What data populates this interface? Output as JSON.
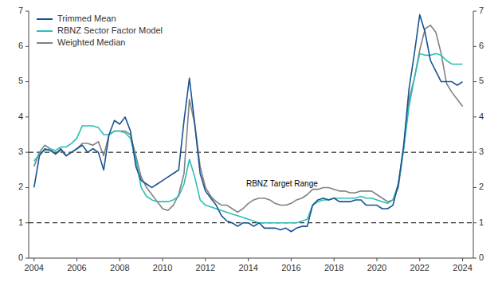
{
  "chart_data": {
    "type": "line",
    "x": [
      2004.0,
      2004.25,
      2004.5,
      2004.75,
      2005.0,
      2005.25,
      2005.5,
      2005.75,
      2006.0,
      2006.25,
      2006.5,
      2006.75,
      2007.0,
      2007.25,
      2007.5,
      2007.75,
      2008.0,
      2008.25,
      2008.5,
      2008.75,
      2009.0,
      2009.25,
      2009.5,
      2009.75,
      2010.0,
      2010.25,
      2010.5,
      2010.75,
      2011.0,
      2011.25,
      2011.5,
      2011.75,
      2012.0,
      2012.25,
      2012.5,
      2012.75,
      2013.0,
      2013.25,
      2013.5,
      2013.75,
      2014.0,
      2014.25,
      2014.5,
      2014.75,
      2015.0,
      2015.25,
      2015.5,
      2015.75,
      2016.0,
      2016.25,
      2016.5,
      2016.75,
      2017.0,
      2017.25,
      2017.5,
      2017.75,
      2018.0,
      2018.25,
      2018.5,
      2018.75,
      2019.0,
      2019.25,
      2019.5,
      2019.75,
      2020.0,
      2020.25,
      2020.5,
      2020.75,
      2021.0,
      2021.25,
      2021.5,
      2021.75,
      2022.0,
      2022.25,
      2022.5,
      2022.75,
      2023.0,
      2023.25,
      2023.5,
      2023.75,
      2024.0
    ],
    "series": [
      {
        "name": "Trimmed Mean",
        "color": "#1a5294",
        "values": [
          2.0,
          2.9,
          3.1,
          3.05,
          2.95,
          3.1,
          2.9,
          3.0,
          3.1,
          3.2,
          3.0,
          3.1,
          3.0,
          2.5,
          3.5,
          3.9,
          3.8,
          4.0,
          3.6,
          2.6,
          2.2,
          2.1,
          2.0,
          2.1,
          2.2,
          2.3,
          2.4,
          2.5,
          3.9,
          5.1,
          3.8,
          2.4,
          1.9,
          1.7,
          1.5,
          1.2,
          1.05,
          1.0,
          0.9,
          1.0,
          1.0,
          0.9,
          1.0,
          0.85,
          0.85,
          0.85,
          0.8,
          0.85,
          0.75,
          0.85,
          0.9,
          0.9,
          1.5,
          1.65,
          1.7,
          1.65,
          1.7,
          1.6,
          1.6,
          1.6,
          1.65,
          1.65,
          1.5,
          1.5,
          1.5,
          1.4,
          1.4,
          1.5,
          2.1,
          3.2,
          4.8,
          5.8,
          6.9,
          6.4,
          5.6,
          5.3,
          5.0,
          5.0,
          5.0,
          4.9,
          5.0
        ]
      },
      {
        "name": "RBNZ Sector Factor Model",
        "color": "#2bbfb3",
        "values": [
          2.75,
          2.95,
          3.05,
          3.1,
          3.05,
          3.15,
          3.15,
          3.25,
          3.4,
          3.75,
          3.75,
          3.75,
          3.7,
          3.5,
          3.5,
          3.6,
          3.6,
          3.55,
          3.4,
          2.8,
          2.0,
          1.75,
          1.65,
          1.6,
          1.6,
          1.6,
          1.65,
          1.75,
          2.1,
          2.8,
          2.3,
          1.65,
          1.5,
          1.45,
          1.4,
          1.35,
          1.3,
          1.25,
          1.2,
          1.15,
          1.1,
          1.05,
          1.0,
          1.0,
          1.0,
          1.0,
          1.0,
          1.0,
          1.0,
          1.0,
          1.05,
          1.1,
          1.5,
          1.6,
          1.65,
          1.65,
          1.7,
          1.7,
          1.7,
          1.7,
          1.7,
          1.75,
          1.7,
          1.7,
          1.65,
          1.6,
          1.55,
          1.65,
          2.1,
          3.1,
          4.3,
          5.1,
          5.8,
          5.75,
          5.75,
          5.8,
          5.75,
          5.6,
          5.5,
          5.5,
          5.5
        ]
      },
      {
        "name": "Weighted Median",
        "color": "#808080",
        "values": [
          2.6,
          3.0,
          3.2,
          3.1,
          2.95,
          3.05,
          2.9,
          3.0,
          3.1,
          3.25,
          3.25,
          3.2,
          3.3,
          2.9,
          3.5,
          3.6,
          3.6,
          3.6,
          3.5,
          2.9,
          2.3,
          2.0,
          1.8,
          1.6,
          1.4,
          1.35,
          1.5,
          1.8,
          2.4,
          4.5,
          3.8,
          2.6,
          2.0,
          1.75,
          1.6,
          1.5,
          1.5,
          1.4,
          1.3,
          1.4,
          1.55,
          1.65,
          1.7,
          1.7,
          1.65,
          1.55,
          1.5,
          1.5,
          1.55,
          1.65,
          1.7,
          1.8,
          1.95,
          1.95,
          2.0,
          2.0,
          1.95,
          1.9,
          1.9,
          1.85,
          1.85,
          1.9,
          1.9,
          1.9,
          1.8,
          1.7,
          1.6,
          1.65,
          2.0,
          3.1,
          4.5,
          5.1,
          5.9,
          6.5,
          6.6,
          6.4,
          5.8,
          4.95,
          4.7,
          4.5,
          4.3
        ]
      }
    ],
    "reference_lines": [
      1.0,
      3.0
    ],
    "annotations": [
      {
        "text": "RBNZ Target Range",
        "x": 2013.9,
        "y": 2.1
      }
    ],
    "xlim": [
      2003.75,
      2024.5
    ],
    "xticks": [
      2004,
      2006,
      2008,
      2010,
      2012,
      2014,
      2016,
      2018,
      2020,
      2022,
      2024
    ],
    "ylim": [
      0,
      7
    ],
    "yticks": [
      0,
      1,
      2,
      3,
      4,
      5,
      6,
      7
    ],
    "y2lim": [
      0,
      7
    ],
    "y2ticks": [
      0,
      1,
      2,
      3,
      4,
      5,
      6,
      7
    ],
    "legend": "upper left",
    "grid": false
  }
}
